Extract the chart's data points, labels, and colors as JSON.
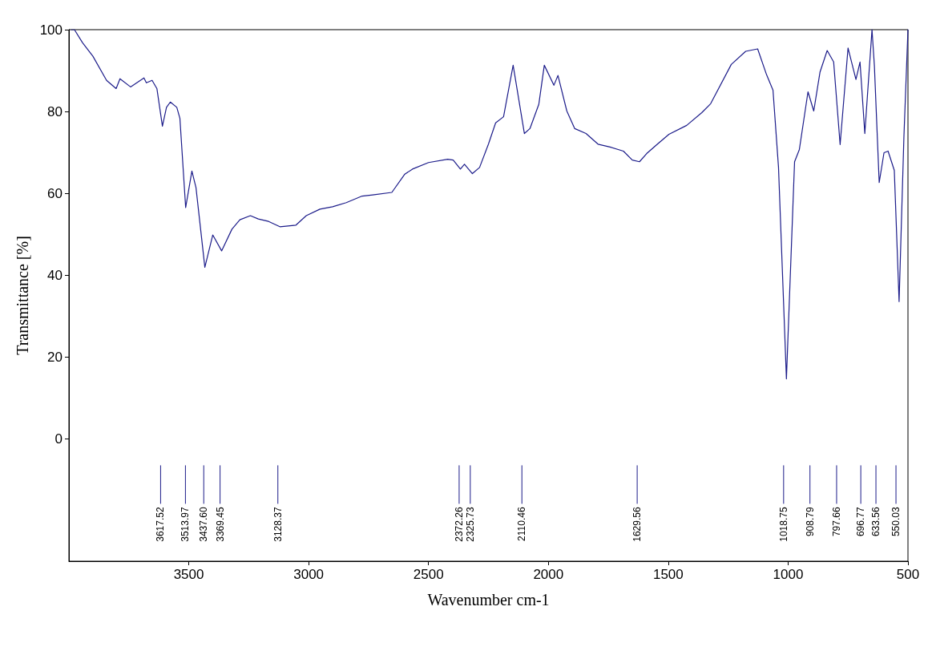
{
  "chart_data": {
    "type": "line",
    "xlabel": "Wavenumber cm-1",
    "ylabel": "Transmittance [%]",
    "xlim": [
      4000,
      500
    ],
    "xticks": [
      3500,
      3000,
      2500,
      2000,
      1500,
      1000,
      500
    ],
    "ylim": [
      -30,
      100
    ],
    "yticks": [
      0,
      20,
      40,
      60,
      80,
      100
    ],
    "marker": "none",
    "line_style": "solid",
    "grid": false,
    "series": [
      {
        "color": "#1c1c8a",
        "x": [
          3990,
          3977,
          3943,
          3900,
          3843,
          3803,
          3787,
          3743,
          3687,
          3677,
          3653,
          3633,
          3610,
          3593,
          3577,
          3550,
          3537,
          3513,
          3487,
          3470,
          3433,
          3400,
          3363,
          3320,
          3287,
          3243,
          3210,
          3167,
          3120,
          3053,
          3010,
          2953,
          2900,
          2843,
          2777,
          2733,
          2653,
          2600,
          2567,
          2500,
          2420,
          2397,
          2367,
          2350,
          2317,
          2287,
          2250,
          2220,
          2187,
          2147,
          2100,
          2077,
          2040,
          2017,
          1977,
          1960,
          1923,
          1890,
          1843,
          1793,
          1743,
          1687,
          1650,
          1620,
          1590,
          1547,
          1497,
          1423,
          1360,
          1323,
          1237,
          1177,
          1127,
          1090,
          1063,
          1040,
          1007,
          973,
          953,
          917,
          893,
          867,
          837,
          810,
          783,
          750,
          717,
          700,
          680,
          650,
          640,
          620,
          600,
          583,
          557,
          537,
          517,
          500
        ],
        "values": [
          100,
          100,
          96.8,
          93.5,
          87.6,
          85.6,
          88,
          86,
          88.2,
          87,
          87.6,
          85.6,
          76.4,
          81,
          82.3,
          81,
          78.3,
          56.5,
          65.4,
          61.4,
          41.9,
          49.8,
          45.9,
          51.2,
          53.5,
          54.5,
          53.7,
          53.1,
          51.8,
          52.2,
          54.5,
          56.1,
          56.7,
          57.7,
          59.3,
          59.6,
          60.2,
          64.6,
          65.9,
          67.5,
          68.3,
          68.1,
          65.9,
          67.1,
          64.8,
          66.3,
          72,
          77.2,
          78.7,
          91.3,
          74.6,
          75.8,
          81.7,
          91.3,
          86.4,
          88.8,
          80.1,
          75.8,
          74.6,
          72,
          71.3,
          70.3,
          68.1,
          67.7,
          69.7,
          71.9,
          74.4,
          76.6,
          79.7,
          81.9,
          91.5,
          94.7,
          95.3,
          89,
          85.2,
          66.3,
          14.6,
          67.7,
          70.7,
          84.8,
          80.1,
          89.6,
          94.9,
          92.1,
          71.9,
          95.5,
          87.8,
          92.1,
          74.6,
          100,
          91.1,
          62.6,
          69.9,
          70.3,
          65.6,
          33.5,
          73.6,
          100
        ]
      }
    ],
    "ref_lines": [
      {
        "axis": "x",
        "value": 3617.52,
        "label": "3617.52"
      },
      {
        "axis": "x",
        "value": 3513.97,
        "label": "3513.97"
      },
      {
        "axis": "x",
        "value": 3437.6,
        "label": "3437.60"
      },
      {
        "axis": "x",
        "value": 3369.45,
        "label": "3369.45"
      },
      {
        "axis": "x",
        "value": 3128.37,
        "label": "3128.37"
      },
      {
        "axis": "x",
        "value": 2372.26,
        "label": "2372.26"
      },
      {
        "axis": "x",
        "value": 2325.73,
        "label": "2325.73"
      },
      {
        "axis": "x",
        "value": 2110.46,
        "label": "2110.46"
      },
      {
        "axis": "x",
        "value": 1629.56,
        "label": "1629.56"
      },
      {
        "axis": "x",
        "value": 1018.75,
        "label": "1018.75"
      },
      {
        "axis": "x",
        "value": 908.79,
        "label": "908.79"
      },
      {
        "axis": "x",
        "value": 797.66,
        "label": "797.66"
      },
      {
        "axis": "x",
        "value": 696.77,
        "label": "696.77"
      },
      {
        "axis": "x",
        "value": 633.56,
        "label": "633.56"
      },
      {
        "axis": "x",
        "value": 550.03,
        "label": "550.03"
      }
    ]
  }
}
